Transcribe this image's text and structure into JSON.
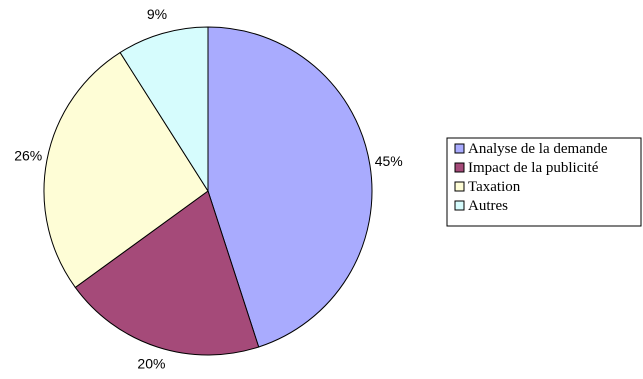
{
  "chart_data": {
    "type": "pie",
    "title": "",
    "slices": [
      {
        "label": "Analyse de la demande",
        "value": 45,
        "display": "45%",
        "color": "#A9ABFE"
      },
      {
        "label": "Impact de la publicité",
        "value": 20,
        "display": "20%",
        "color": "#A54A79"
      },
      {
        "label": "Taxation",
        "value": 26,
        "display": "26%",
        "color": "#FEFDD6"
      },
      {
        "label": "Autres",
        "value": 9,
        "display": "9%",
        "color": "#D6FCFD"
      }
    ],
    "start_angle_deg": 0,
    "direction": "clockwise",
    "slice_outline_color": "#000000",
    "legend_position": "right"
  }
}
